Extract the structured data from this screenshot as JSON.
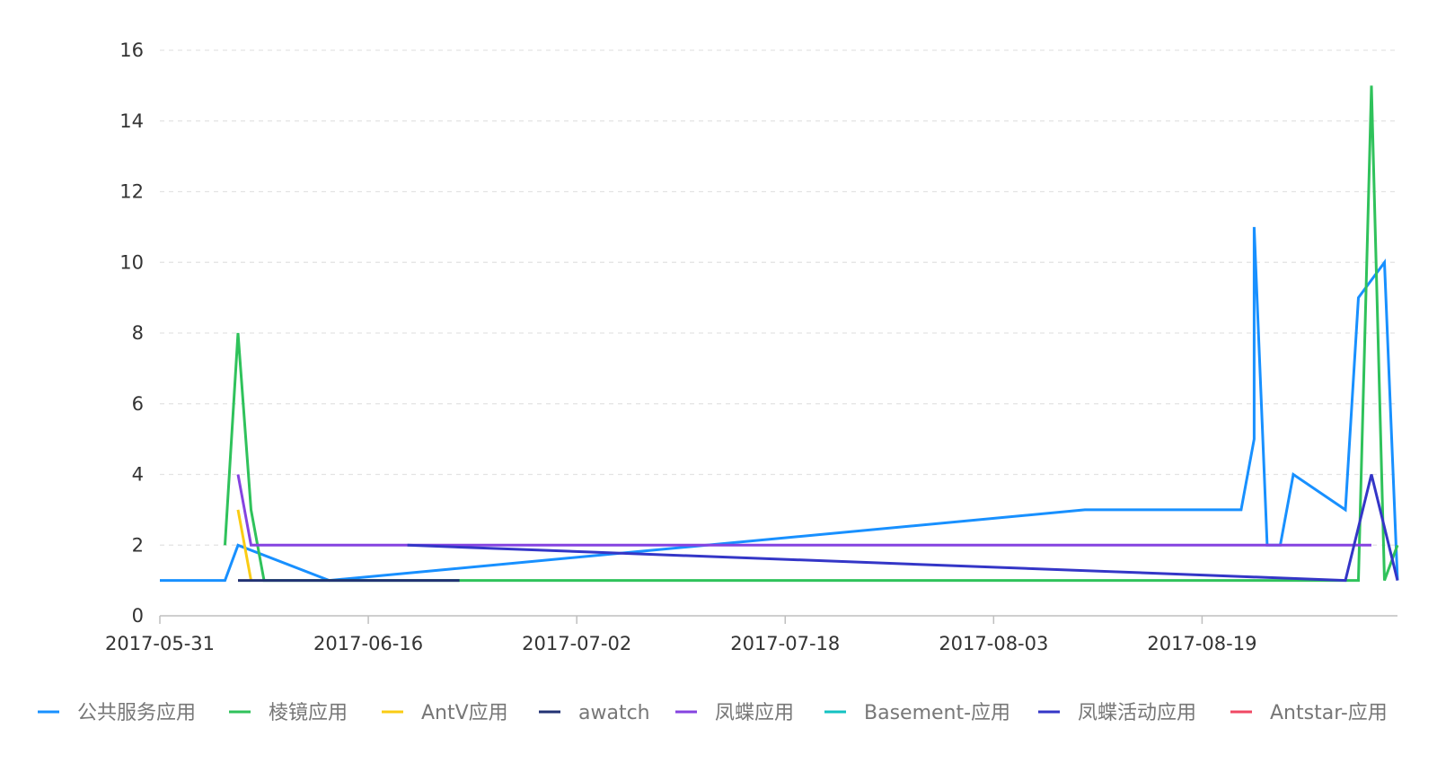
{
  "chart_data": {
    "type": "line",
    "ylim": [
      0,
      16
    ],
    "yticks": [
      0,
      2,
      4,
      6,
      8,
      10,
      12,
      14,
      16
    ],
    "xlim": [
      "2017-05-31",
      "2017-09-03"
    ],
    "xticks": [
      "2017-05-31",
      "2017-06-16",
      "2017-07-02",
      "2017-07-18",
      "2017-08-03",
      "2017-08-19"
    ],
    "grid": true,
    "legend_position": "bottom",
    "series": [
      {
        "name": "公共服务应用",
        "color": "#1890FF",
        "points": [
          [
            "2017-05-31",
            1
          ],
          [
            "2017-06-05",
            1
          ],
          [
            "2017-06-06",
            2
          ],
          [
            "2017-06-13",
            1
          ],
          [
            "2017-08-10",
            3
          ],
          [
            "2017-08-22",
            3
          ],
          [
            "2017-08-23",
            5
          ],
          [
            "2017-08-23",
            11
          ],
          [
            "2017-08-24",
            2
          ],
          [
            "2017-08-25",
            2
          ],
          [
            "2017-08-26",
            4
          ],
          [
            "2017-08-30",
            3
          ],
          [
            "2017-08-31",
            9
          ],
          [
            "2017-09-02",
            10
          ],
          [
            "2017-09-03",
            1
          ]
        ]
      },
      {
        "name": "棱镜应用",
        "color": "#2FC25B",
        "points": [
          [
            "2017-06-05",
            2
          ],
          [
            "2017-06-06",
            8
          ],
          [
            "2017-06-07",
            3
          ],
          [
            "2017-06-08",
            1
          ],
          [
            "2017-08-31",
            1
          ],
          [
            "2017-09-01",
            15
          ],
          [
            "2017-09-02",
            1
          ],
          [
            "2017-09-03",
            2
          ]
        ]
      },
      {
        "name": "AntV应用",
        "color": "#FACC14",
        "points": [
          [
            "2017-06-06",
            3
          ],
          [
            "2017-06-07",
            1
          ]
        ]
      },
      {
        "name": "awatch",
        "color": "#223273",
        "points": [
          [
            "2017-06-06",
            1
          ],
          [
            "2017-06-23",
            1
          ]
        ]
      },
      {
        "name": "凤蝶应用",
        "color": "#8543E0",
        "points": [
          [
            "2017-06-06",
            4
          ],
          [
            "2017-06-07",
            2
          ],
          [
            "2017-09-01",
            2
          ]
        ]
      },
      {
        "name": "Basement-应用",
        "color": "#13C2C2",
        "points": []
      },
      {
        "name": "凤蝶活动应用",
        "color": "#3436C7",
        "points": [
          [
            "2017-06-19",
            2
          ],
          [
            "2017-08-30",
            1
          ],
          [
            "2017-09-01",
            4
          ],
          [
            "2017-09-03",
            1
          ]
        ]
      },
      {
        "name": "Antstar-应用",
        "color": "#F04864",
        "points": []
      }
    ]
  }
}
